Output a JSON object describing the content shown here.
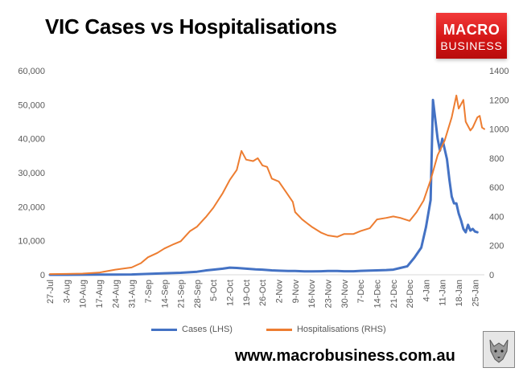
{
  "header": {
    "title": "VIC Cases vs Hospitalisations"
  },
  "logo": {
    "line1": "MACRO",
    "line2": "BUSINESS"
  },
  "footer": {
    "url": "www.macrobusiness.com.au"
  },
  "chart_data": {
    "type": "line",
    "title": "VIC Cases vs Hospitalisations",
    "x_tick_labels": [
      "27-Jul",
      "3-Aug",
      "10-Aug",
      "17-Aug",
      "24-Aug",
      "31-Aug",
      "7-Sep",
      "14-Sep",
      "21-Sep",
      "28-Sep",
      "5-Oct",
      "12-Oct",
      "19-Oct",
      "26-Oct",
      "2-Nov",
      "9-Nov",
      "16-Nov",
      "23-Nov",
      "30-Nov",
      "7-Dec",
      "14-Dec",
      "21-Dec",
      "28-Dec",
      "4-Jan",
      "11-Jan",
      "18-Jan",
      "25-Jan"
    ],
    "x_range": [
      "2021-07-27",
      "2022-01-29"
    ],
    "y_left": {
      "min": 0,
      "max": 60000,
      "step": 10000,
      "tick_labels": [
        "0",
        "10,000",
        "20,000",
        "30,000",
        "40,000",
        "50,000",
        "60,000"
      ]
    },
    "y_right": {
      "min": 0,
      "max": 1400,
      "step": 200,
      "tick_labels": [
        "0",
        "200",
        "400",
        "600",
        "800",
        "1000",
        "1200",
        "1400"
      ]
    },
    "grid": false,
    "legend_position": "bottom",
    "series": [
      {
        "name": "Cases (LHS)",
        "axis": "left",
        "color": "#4472C4",
        "points": [
          [
            "2021-07-27",
            0
          ],
          [
            "2021-08-03",
            10
          ],
          [
            "2021-08-10",
            20
          ],
          [
            "2021-08-17",
            40
          ],
          [
            "2021-08-24",
            60
          ],
          [
            "2021-08-31",
            100
          ],
          [
            "2021-09-07",
            250
          ],
          [
            "2021-09-14",
            450
          ],
          [
            "2021-09-21",
            600
          ],
          [
            "2021-09-28",
            900
          ],
          [
            "2021-10-02",
            1300
          ],
          [
            "2021-10-05",
            1500
          ],
          [
            "2021-10-09",
            1800
          ],
          [
            "2021-10-12",
            2100
          ],
          [
            "2021-10-15",
            2000
          ],
          [
            "2021-10-19",
            1800
          ],
          [
            "2021-10-23",
            1600
          ],
          [
            "2021-10-26",
            1500
          ],
          [
            "2021-10-30",
            1300
          ],
          [
            "2021-11-02",
            1200
          ],
          [
            "2021-11-06",
            1100
          ],
          [
            "2021-11-09",
            1100
          ],
          [
            "2021-11-13",
            1000
          ],
          [
            "2021-11-16",
            1000
          ],
          [
            "2021-11-20",
            1050
          ],
          [
            "2021-11-23",
            1100
          ],
          [
            "2021-11-27",
            1100
          ],
          [
            "2021-11-30",
            1050
          ],
          [
            "2021-12-04",
            1050
          ],
          [
            "2021-12-07",
            1150
          ],
          [
            "2021-12-11",
            1250
          ],
          [
            "2021-12-14",
            1300
          ],
          [
            "2021-12-18",
            1400
          ],
          [
            "2021-12-21",
            1500
          ],
          [
            "2021-12-24",
            2000
          ],
          [
            "2021-12-27",
            2500
          ],
          [
            "2021-12-30",
            5000
          ],
          [
            "2022-01-02",
            8000
          ],
          [
            "2022-01-04",
            14000
          ],
          [
            "2022-01-06",
            22000
          ],
          [
            "2022-01-07",
            51400
          ],
          [
            "2022-01-09",
            40000
          ],
          [
            "2022-01-10",
            36500
          ],
          [
            "2022-01-11",
            40000
          ],
          [
            "2022-01-12",
            37000
          ],
          [
            "2022-01-13",
            34000
          ],
          [
            "2022-01-14",
            28000
          ],
          [
            "2022-01-15",
            23000
          ],
          [
            "2022-01-16",
            21000
          ],
          [
            "2022-01-17",
            21000
          ],
          [
            "2022-01-18",
            18000
          ],
          [
            "2022-01-19",
            16000
          ],
          [
            "2022-01-20",
            13500
          ],
          [
            "2022-01-21",
            12500
          ],
          [
            "2022-01-22",
            14700
          ],
          [
            "2022-01-23",
            13000
          ],
          [
            "2022-01-24",
            13500
          ],
          [
            "2022-01-25",
            12700
          ],
          [
            "2022-01-26",
            12500
          ]
        ]
      },
      {
        "name": "Hospitalisations (RHS)",
        "axis": "right",
        "color": "#ED7D31",
        "points": [
          [
            "2021-07-27",
            5
          ],
          [
            "2021-08-03",
            6
          ],
          [
            "2021-08-10",
            8
          ],
          [
            "2021-08-17",
            15
          ],
          [
            "2021-08-24",
            35
          ],
          [
            "2021-08-31",
            50
          ],
          [
            "2021-09-04",
            80
          ],
          [
            "2021-09-07",
            120
          ],
          [
            "2021-09-11",
            150
          ],
          [
            "2021-09-14",
            180
          ],
          [
            "2021-09-18",
            210
          ],
          [
            "2021-09-21",
            230
          ],
          [
            "2021-09-25",
            300
          ],
          [
            "2021-09-28",
            330
          ],
          [
            "2021-10-02",
            400
          ],
          [
            "2021-10-05",
            460
          ],
          [
            "2021-10-09",
            560
          ],
          [
            "2021-10-12",
            650
          ],
          [
            "2021-10-15",
            720
          ],
          [
            "2021-10-17",
            850
          ],
          [
            "2021-10-19",
            790
          ],
          [
            "2021-10-22",
            780
          ],
          [
            "2021-10-24",
            800
          ],
          [
            "2021-10-26",
            750
          ],
          [
            "2021-10-28",
            740
          ],
          [
            "2021-10-30",
            660
          ],
          [
            "2021-11-02",
            640
          ],
          [
            "2021-11-05",
            570
          ],
          [
            "2021-11-08",
            500
          ],
          [
            "2021-11-09",
            430
          ],
          [
            "2021-11-12",
            380
          ],
          [
            "2021-11-16",
            330
          ],
          [
            "2021-11-20",
            290
          ],
          [
            "2021-11-23",
            270
          ],
          [
            "2021-11-27",
            260
          ],
          [
            "2021-11-30",
            280
          ],
          [
            "2021-12-04",
            280
          ],
          [
            "2021-12-07",
            300
          ],
          [
            "2021-12-11",
            320
          ],
          [
            "2021-12-14",
            380
          ],
          [
            "2021-12-18",
            390
          ],
          [
            "2021-12-21",
            400
          ],
          [
            "2021-12-24",
            390
          ],
          [
            "2021-12-28",
            370
          ],
          [
            "2021-12-31",
            430
          ],
          [
            "2022-01-03",
            510
          ],
          [
            "2022-01-06",
            650
          ],
          [
            "2022-01-09",
            820
          ],
          [
            "2022-01-12",
            920
          ],
          [
            "2022-01-15",
            1080
          ],
          [
            "2022-01-17",
            1230
          ],
          [
            "2022-01-18",
            1140
          ],
          [
            "2022-01-20",
            1200
          ],
          [
            "2022-01-21",
            1050
          ],
          [
            "2022-01-23",
            990
          ],
          [
            "2022-01-24",
            1010
          ],
          [
            "2022-01-26",
            1080
          ],
          [
            "2022-01-27",
            1090
          ],
          [
            "2022-01-28",
            1010
          ],
          [
            "2022-01-29",
            1000
          ]
        ]
      }
    ]
  }
}
